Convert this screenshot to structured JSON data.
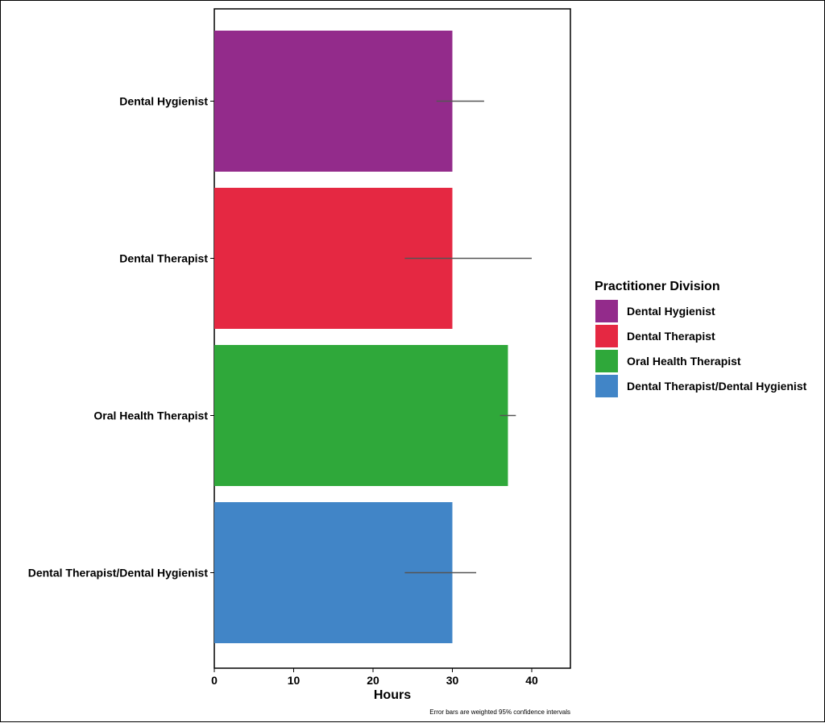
{
  "chart_data": {
    "type": "bar",
    "orientation": "horizontal",
    "categories": [
      "Dental Hygienist",
      "Dental Therapist",
      "Oral Health Therapist",
      "Dental Therapist/Dental Hygienist"
    ],
    "values": [
      30,
      30,
      37,
      30
    ],
    "error_low": [
      28,
      24,
      36,
      24
    ],
    "error_high": [
      34,
      40,
      38,
      33
    ],
    "colors": [
      "#932b8b",
      "#e52842",
      "#2fa83a",
      "#4185c7"
    ],
    "xlabel": "Hours",
    "ylabel": "",
    "xlim": [
      0,
      45
    ],
    "xticks": [
      0,
      10,
      20,
      30,
      40
    ],
    "grid": false,
    "legend": {
      "title": "Practitioner Division",
      "placement": "right",
      "entries": [
        "Dental Hygienist",
        "Dental Therapist",
        "Oral Health Therapist",
        "Dental Therapist/Dental Hygienist"
      ]
    },
    "caption": "Error bars are weighted 95% confidence intervals"
  }
}
